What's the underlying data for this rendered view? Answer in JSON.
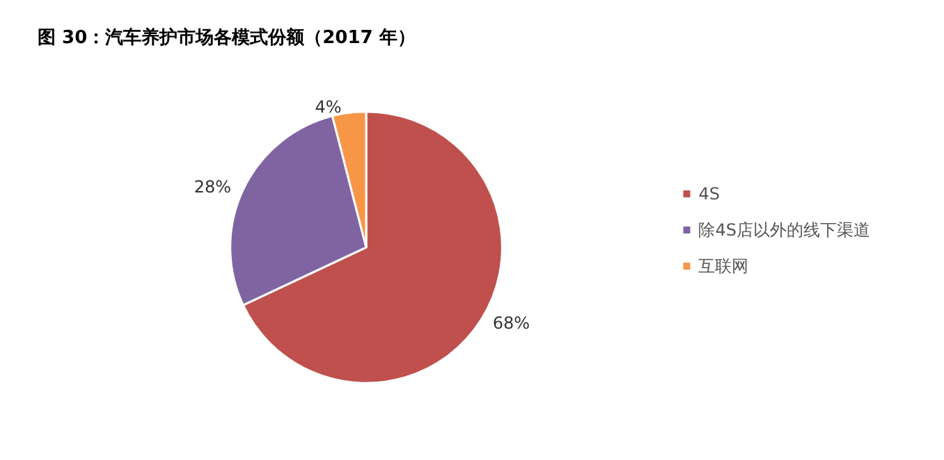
{
  "chart_data": {
    "type": "pie",
    "title": "图 30：汽车养护市场各模式份额（2017 年）",
    "categories": [
      "4S",
      "除4S店以外的线下渠道",
      "互联网"
    ],
    "values": [
      68,
      28,
      4
    ],
    "colors": [
      "#c0504d",
      "#8064a2",
      "#f79646"
    ],
    "value_labels": [
      "68%",
      "28%",
      "4%"
    ],
    "legend": "right"
  }
}
